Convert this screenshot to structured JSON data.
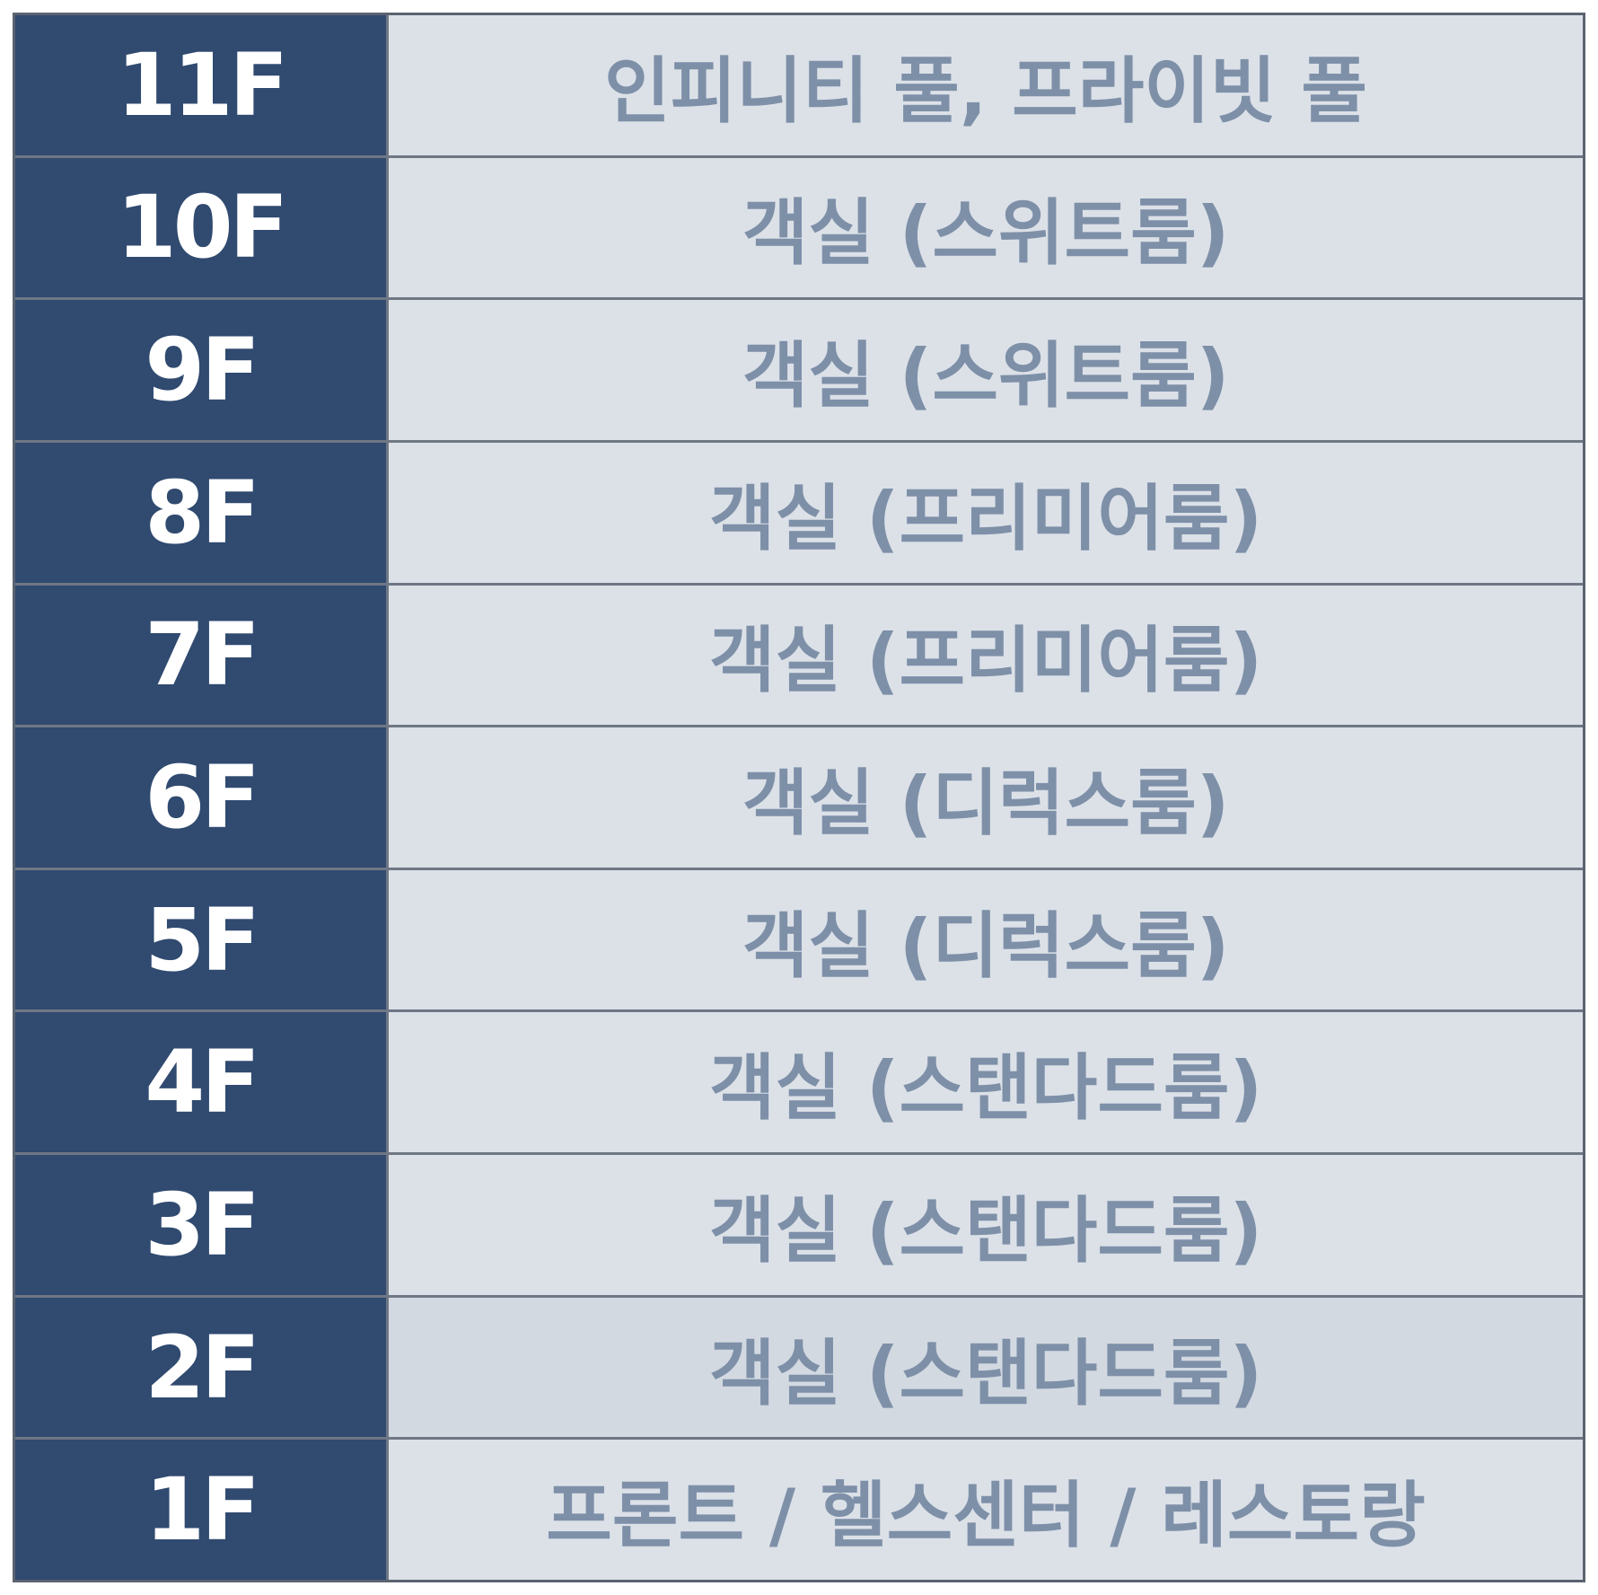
{
  "floors": [
    {
      "floor": "11F",
      "desc": "인피니티 풀, 프라이빗 풀"
    },
    {
      "floor": "10F",
      "desc": "객실 (스위트룸)"
    },
    {
      "floor": "9F",
      "desc": "객실 (스위트룸)"
    },
    {
      "floor": "8F",
      "desc": "객실 (프리미어룸)"
    },
    {
      "floor": "7F",
      "desc": "객실 (프리미어룸)"
    },
    {
      "floor": "6F",
      "desc": "객실 (디럭스룸)"
    },
    {
      "floor": "5F",
      "desc": "객실 (디럭스룸)"
    },
    {
      "floor": "4F",
      "desc": "객실 (스탠다드룸)"
    },
    {
      "floor": "3F",
      "desc": "객실 (스탠다드룸)"
    },
    {
      "floor": "2F",
      "desc": "객실 (스탠다드룸)"
    },
    {
      "floor": "1F",
      "desc": "프론트 / 헬스센터 / 레스토랑"
    }
  ],
  "colors": {
    "floor_label_bg": "#304a70",
    "floor_label_text": "#ffffff",
    "desc_bg": "#dce1e8",
    "desc_text": "#7e90a8"
  }
}
